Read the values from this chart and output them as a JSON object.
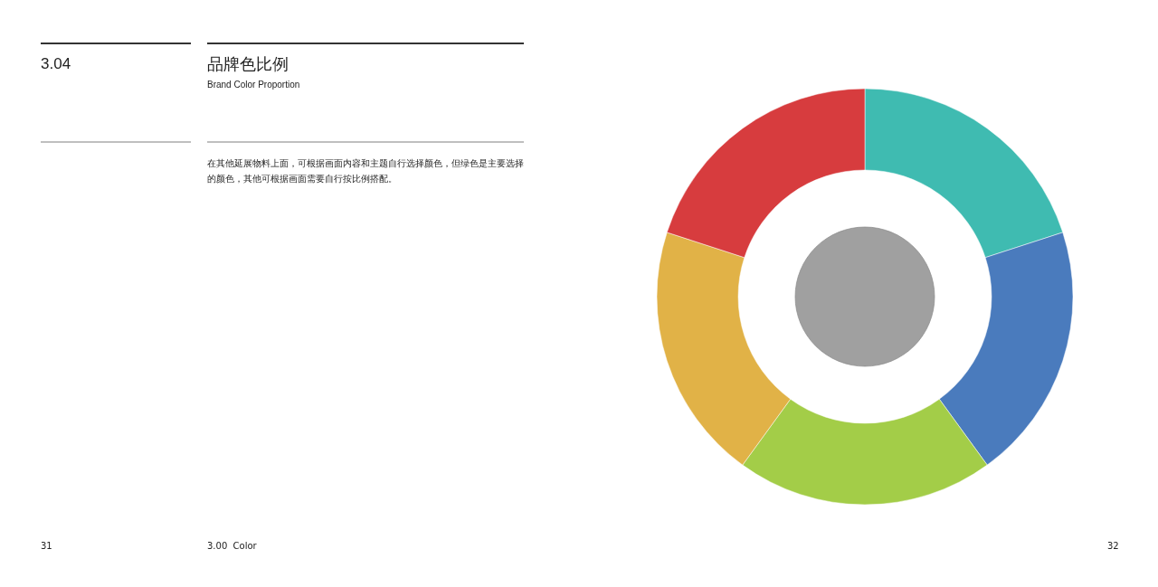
{
  "chart_data": {
    "type": "donut",
    "title": "品牌色比例",
    "subtitle": "Brand Color Proportion",
    "annotations": [
      "3.04",
      "在其他延展物料上面，可根据画面内容和主题自行选择颜色，但绿色是主要选择的颜色，其他可根据画面需要自行按比例搭配。",
      "31",
      "3.00  Color",
      "32"
    ],
    "categories": [
      null,
      null,
      null,
      null,
      null
    ],
    "values": [
      20,
      20,
      20,
      20,
      20
    ],
    "colors": [
      "#3fbbb1",
      "#4a7bbd",
      "#a3cd48",
      "#e1b247",
      "#d73c3e"
    ]
  }
}
